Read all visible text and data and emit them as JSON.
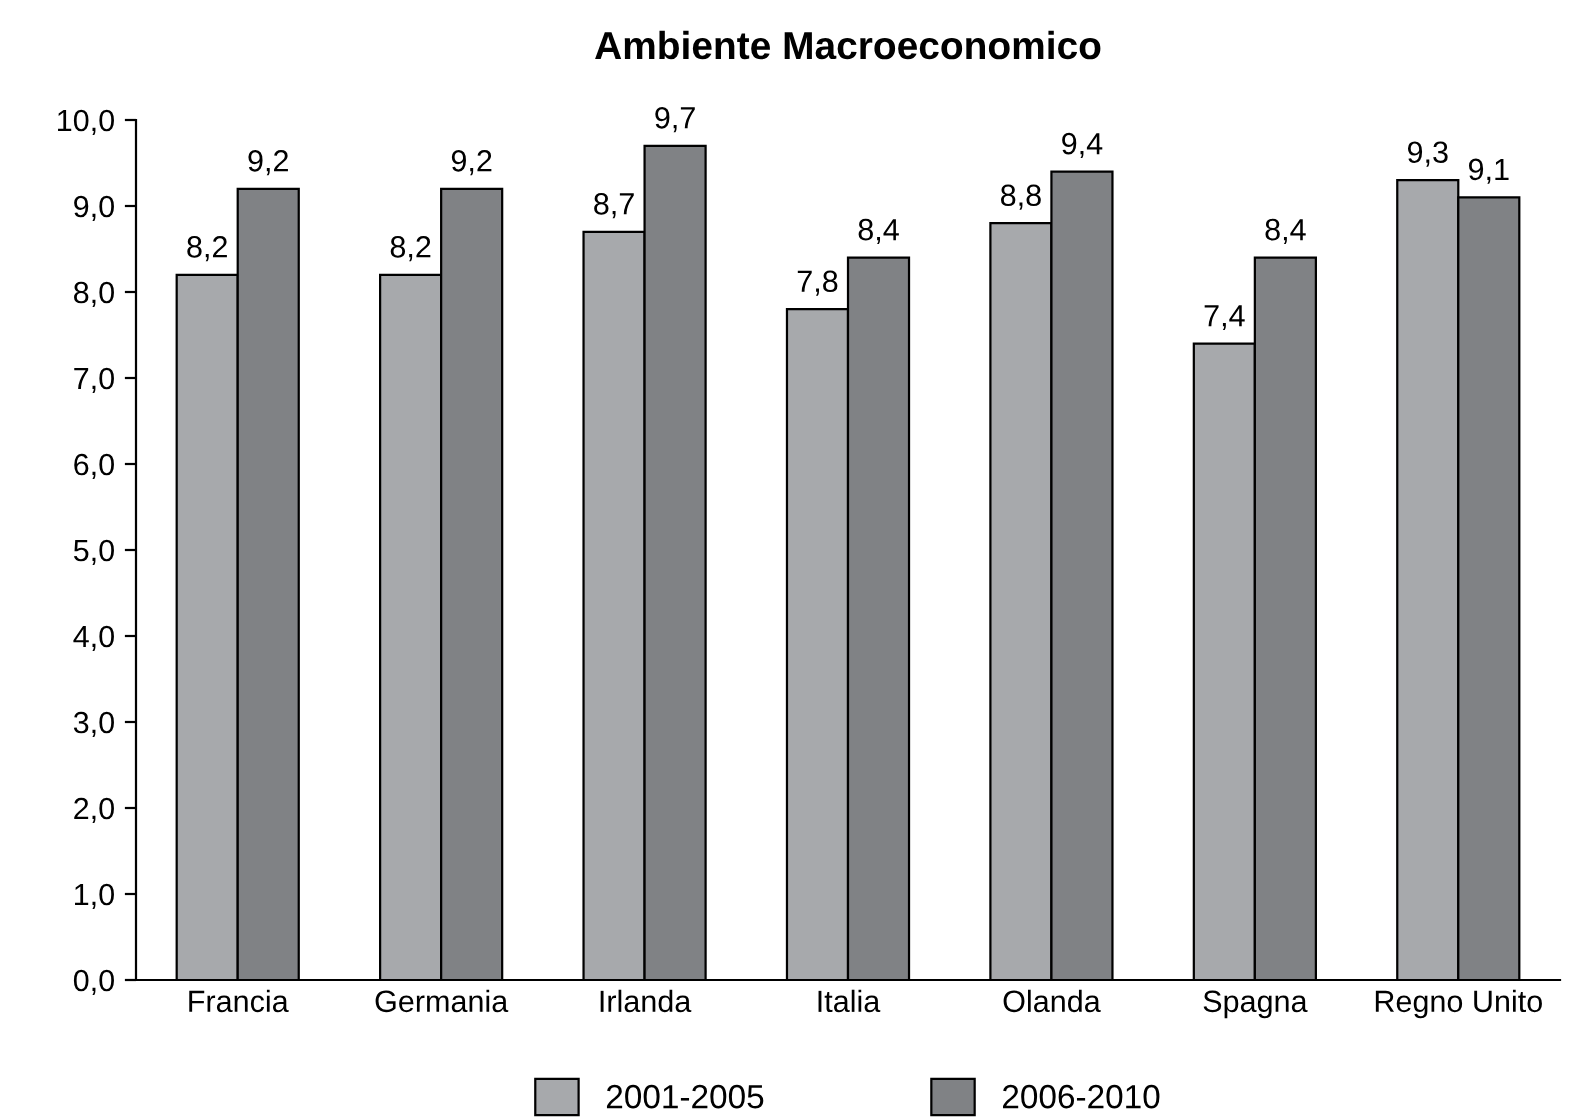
{
  "chart_data": {
    "type": "bar",
    "title": "Ambiente Macroeconomico",
    "categories": [
      "Francia",
      "Germania",
      "Irlanda",
      "Italia",
      "Olanda",
      "Spagna",
      "Regno Unito"
    ],
    "series": [
      {
        "name": "2001-2005",
        "color": "#a7a9ac",
        "values": [
          8.2,
          8.2,
          8.7,
          7.8,
          8.8,
          7.4,
          9.3
        ],
        "value_labels": [
          "8,2",
          "8,2",
          "8,7",
          "7,8",
          "8,8",
          "7,4",
          "9,3"
        ]
      },
      {
        "name": "2006-2010",
        "color": "#808285",
        "values": [
          9.2,
          9.2,
          9.7,
          8.4,
          9.4,
          8.4,
          9.1
        ],
        "value_labels": [
          "9,2",
          "9,2",
          "9,7",
          "8,4",
          "9,4",
          "8,4",
          "9,1"
        ]
      }
    ],
    "ylim": [
      0,
      10
    ],
    "yticks": [
      {
        "value": 0,
        "label": "0,0"
      },
      {
        "value": 1,
        "label": "1,0"
      },
      {
        "value": 2,
        "label": "2,0"
      },
      {
        "value": 3,
        "label": "3,0"
      },
      {
        "value": 4,
        "label": "4,0"
      },
      {
        "value": 5,
        "label": "5,0"
      },
      {
        "value": 6,
        "label": "6,0"
      },
      {
        "value": 7,
        "label": "7,0"
      },
      {
        "value": 8,
        "label": "8,0"
      },
      {
        "value": 9,
        "label": "9,0"
      },
      {
        "value": 10,
        "label": "10,0"
      }
    ],
    "grid": false,
    "legend": "bottom"
  }
}
